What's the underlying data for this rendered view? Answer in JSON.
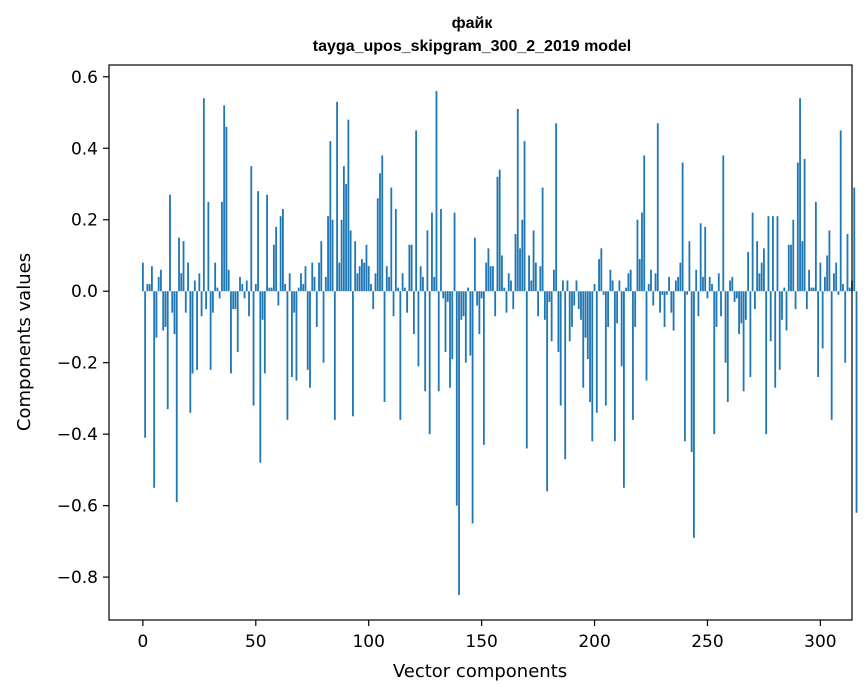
{
  "chart_data": {
    "type": "bar",
    "title": "файк",
    "subtitle": "tayga_upos_skipgram_300_2_2019 model",
    "xlabel": "Vector components",
    "ylabel": "Components values",
    "xlim": [
      -15,
      314
    ],
    "ylim": [
      -0.92,
      0.633
    ],
    "xticks": [
      0,
      50,
      100,
      150,
      200,
      250,
      300
    ],
    "xtick_labels": [
      "0",
      "50",
      "100",
      "150",
      "200",
      "250",
      "300"
    ],
    "yticks": [
      0.6,
      0.4,
      0.2,
      0.0,
      -0.2,
      -0.4,
      -0.6,
      -0.8
    ],
    "ytick_labels": [
      "0.6",
      "0.4",
      "0.2",
      "0.0",
      "−0.2",
      "−0.4",
      "−0.6",
      "−0.8"
    ],
    "color": "#1f77b4",
    "grid": false,
    "values": [
      0.08,
      -0.41,
      0.02,
      0.02,
      0.07,
      -0.55,
      -0.13,
      0.04,
      0.06,
      -0.11,
      -0.1,
      -0.33,
      0.27,
      -0.06,
      -0.12,
      -0.59,
      0.15,
      0.05,
      0.14,
      -0.06,
      0.08,
      -0.34,
      -0.23,
      0.03,
      -0.22,
      0.05,
      -0.07,
      0.54,
      -0.05,
      0.25,
      -0.22,
      -0.06,
      0.08,
      0.01,
      -0.02,
      0.25,
      0.52,
      0.46,
      0.06,
      -0.23,
      -0.05,
      -0.05,
      -0.17,
      0.04,
      0.02,
      -0.02,
      0.03,
      -0.07,
      0.35,
      -0.32,
      0.02,
      0.28,
      -0.48,
      -0.08,
      -0.23,
      0.27,
      0.01,
      0.01,
      0.13,
      0.18,
      -0.04,
      0.21,
      0.23,
      0.02,
      -0.36,
      0.05,
      -0.24,
      -0.06,
      -0.25,
      0.01,
      0.05,
      0.02,
      0.07,
      -0.22,
      -0.27,
      0.08,
      0.04,
      -0.1,
      0.08,
      0.14,
      -0.2,
      0.04,
      0.21,
      0.42,
      0.2,
      -0.36,
      0.53,
      0.08,
      0.2,
      0.35,
      0.3,
      0.48,
      0.17,
      -0.35,
      0.14,
      0.05,
      0.07,
      0.09,
      0.08,
      0.13,
      0.07,
      0.02,
      -0.05,
      0.05,
      0.26,
      0.33,
      0.38,
      -0.31,
      0.07,
      0.04,
      0.29,
      -0.07,
      0.23,
      0.01,
      -0.36,
      0.05,
      0.01,
      -0.06,
      0.13,
      0.13,
      -0.12,
      0.45,
      -0.21,
      0.07,
      0.04,
      -0.28,
      0.17,
      -0.4,
      0.22,
      0.04,
      0.56,
      -0.28,
      0.23,
      -0.02,
      -0.17,
      -0.03,
      -0.27,
      -0.19,
      0.22,
      -0.6,
      -0.85,
      -0.08,
      -0.07,
      -0.2,
      0.01,
      -0.18,
      -0.65,
      0.15,
      -0.04,
      -0.12,
      -0.02,
      -0.43,
      0.08,
      0.12,
      0.07,
      0.07,
      -0.07,
      0.32,
      0.34,
      0.1,
      0.01,
      -0.06,
      0.05,
      0.03,
      -0.05,
      0.16,
      0.51,
      0.12,
      0.2,
      0.42,
      -0.44,
      0.1,
      0.03,
      0.17,
      0.08,
      -0.07,
      0.07,
      0.29,
      -0.08,
      -0.56,
      -0.03,
      -0.14,
      0.06,
      0.47,
      -0.17,
      -0.32,
      0.03,
      -0.47,
      0.03,
      -0.14,
      -0.1,
      -0.04,
      0.03,
      -0.05,
      -0.08,
      -0.27,
      -0.13,
      -0.19,
      -0.31,
      -0.42,
      0.02,
      -0.34,
      0.09,
      0.12,
      -0.01,
      -0.32,
      -0.1,
      0.06,
      0.03,
      -0.42,
      -0.09,
      0.03,
      -0.21,
      -0.55,
      0.01,
      0.05,
      0.06,
      -0.36,
      -0.1,
      0.2,
      0.09,
      0.22,
      0.38,
      -0.25,
      0.02,
      0.06,
      -0.04,
      0.05,
      0.47,
      -0.06,
      -0.01,
      -0.1,
      -0.01,
      0.04,
      -0.06,
      -0.11,
      0.03,
      0.04,
      0.08,
      0.36,
      -0.42,
      -0.01,
      0.14,
      -0.45,
      -0.69,
      0.06,
      -0.07,
      0.19,
      0.04,
      0.18,
      -0.02,
      0.04,
      0.02,
      -0.4,
      -0.1,
      0.05,
      -0.07,
      0.38,
      -0.2,
      -0.31,
      0.03,
      0.04,
      -0.03,
      -0.02,
      -0.12,
      -0.09,
      -0.28,
      -0.08,
      0.11,
      -0.24,
      0.22,
      -0.05,
      0.14,
      0.05,
      0.08,
      0.12,
      -0.4,
      0.21,
      -0.14,
      0.21,
      -0.27,
      0.21,
      -0.22,
      -0.08,
      0.01,
      -0.11,
      0.13,
      0.13,
      0.2,
      -0.05,
      0.36,
      0.54,
      0.14,
      0.37,
      -0.05,
      0.06,
      0.01,
      0.01,
      0.25,
      -0.24,
      0.08,
      -0.16,
      0.04,
      0.1,
      0.17,
      -0.36,
      0.05,
      0.08,
      -0.01,
      0.45,
      0.02,
      -0.2,
      0.16,
      0.01,
      0.03,
      0.29,
      -0.62
    ]
  }
}
